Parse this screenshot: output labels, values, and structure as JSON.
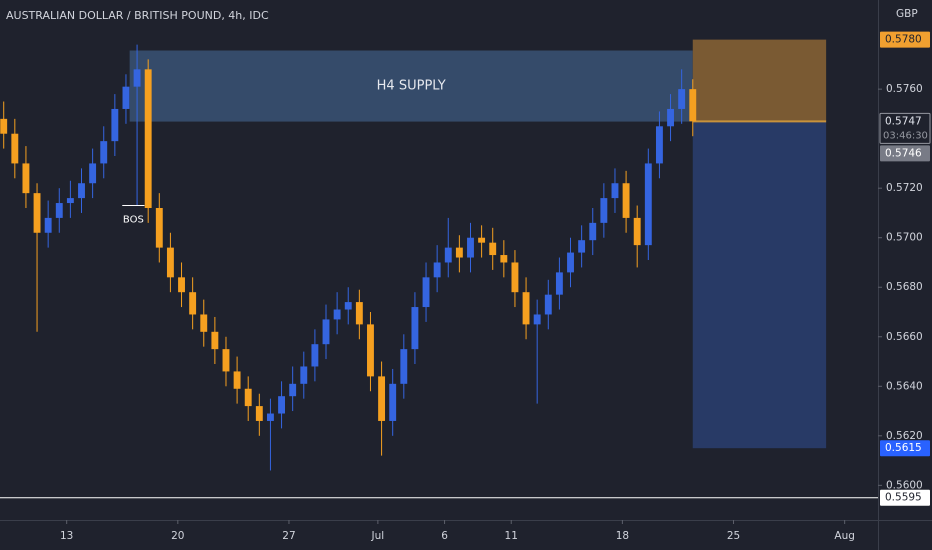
{
  "chart_data": {
    "type": "candlestick",
    "title": "AUSTRALIAN DOLLAR / BRITISH POUND, 4h, IDC",
    "y_axis_label": "GBP",
    "up_color": "#3565e0",
    "down_color": "#f5a020",
    "x": [
      -17,
      -14,
      -11,
      -8,
      -5,
      -2,
      1,
      4,
      7,
      10,
      13,
      16,
      19,
      22,
      25,
      28,
      31,
      34,
      37,
      40,
      43,
      46,
      49,
      52,
      55,
      58,
      61,
      64,
      67,
      70,
      73,
      76,
      79,
      82,
      85,
      88,
      91,
      94,
      97,
      100,
      103,
      106,
      109,
      112,
      115,
      118,
      121,
      124,
      127,
      130,
      133,
      136,
      139,
      142,
      145,
      148,
      151,
      154,
      157,
      160,
      163,
      166,
      169
    ],
    "open": [
      0.5748,
      0.5742,
      0.573,
      0.5718,
      0.5702,
      0.5708,
      0.5714,
      0.5716,
      0.5722,
      0.573,
      0.5739,
      0.5752,
      0.5761,
      0.5768,
      0.5712,
      0.5696,
      0.5684,
      0.5678,
      0.5669,
      0.5662,
      0.5655,
      0.5646,
      0.5639,
      0.5632,
      0.5626,
      0.5629,
      0.5636,
      0.5641,
      0.5648,
      0.5657,
      0.5667,
      0.5671,
      0.5674,
      0.5665,
      0.5644,
      0.5626,
      0.5641,
      0.5655,
      0.5672,
      0.5684,
      0.569,
      0.5696,
      0.5692,
      0.57,
      0.5698,
      0.5693,
      0.569,
      0.5678,
      0.5665,
      0.5669,
      0.5677,
      0.5686,
      0.5694,
      0.5699,
      0.5706,
      0.5716,
      0.5722,
      0.5708,
      0.5697,
      0.573,
      0.5745,
      0.5752,
      0.576
    ],
    "high": [
      0.5755,
      0.5748,
      0.5737,
      0.5722,
      0.5715,
      0.572,
      0.5723,
      0.5728,
      0.5736,
      0.5745,
      0.5758,
      0.5766,
      0.5778,
      0.5772,
      0.5718,
      0.5702,
      0.569,
      0.5684,
      0.5675,
      0.5668,
      0.566,
      0.5652,
      0.5644,
      0.5637,
      0.5635,
      0.5642,
      0.5648,
      0.5654,
      0.5663,
      0.5673,
      0.5678,
      0.568,
      0.5679,
      0.567,
      0.565,
      0.5647,
      0.5661,
      0.5678,
      0.569,
      0.5697,
      0.5708,
      0.5701,
      0.5706,
      0.5705,
      0.5704,
      0.5699,
      0.5695,
      0.5684,
      0.5675,
      0.5683,
      0.5692,
      0.57,
      0.5705,
      0.5712,
      0.5722,
      0.5728,
      0.5727,
      0.5713,
      0.5736,
      0.5751,
      0.5758,
      0.5768,
      0.5764
    ],
    "low": [
      0.5736,
      0.5724,
      0.5712,
      0.5662,
      0.5696,
      0.5702,
      0.5708,
      0.571,
      0.5716,
      0.5724,
      0.5733,
      0.5746,
      0.5713,
      0.5706,
      0.569,
      0.5678,
      0.5672,
      0.5663,
      0.5656,
      0.5649,
      0.564,
      0.5633,
      0.5626,
      0.562,
      0.5606,
      0.5623,
      0.563,
      0.5635,
      0.5642,
      0.5651,
      0.5661,
      0.5665,
      0.5659,
      0.5638,
      0.5612,
      0.562,
      0.5635,
      0.5649,
      0.5666,
      0.5678,
      0.5684,
      0.5686,
      0.5686,
      0.5692,
      0.5687,
      0.5684,
      0.5672,
      0.5659,
      0.5633,
      0.5663,
      0.5671,
      0.568,
      0.5688,
      0.5693,
      0.57,
      0.571,
      0.5702,
      0.5688,
      0.5691,
      0.5724,
      0.5739,
      0.5746,
      0.5741
    ],
    "close": [
      0.5742,
      0.573,
      0.5718,
      0.5702,
      0.5708,
      0.5714,
      0.5716,
      0.5722,
      0.573,
      0.5739,
      0.5752,
      0.5761,
      0.5768,
      0.5712,
      0.5696,
      0.5684,
      0.5678,
      0.5669,
      0.5662,
      0.5655,
      0.5646,
      0.5639,
      0.5632,
      0.5626,
      0.5629,
      0.5636,
      0.5641,
      0.5648,
      0.5657,
      0.5667,
      0.5671,
      0.5674,
      0.5665,
      0.5644,
      0.5626,
      0.5641,
      0.5655,
      0.5672,
      0.5684,
      0.569,
      0.5696,
      0.5692,
      0.57,
      0.5698,
      0.5693,
      0.569,
      0.5678,
      0.5665,
      0.5669,
      0.5677,
      0.5686,
      0.5694,
      0.5699,
      0.5706,
      0.5716,
      0.5722,
      0.5708,
      0.5697,
      0.573,
      0.5745,
      0.5752,
      0.576,
      0.5747
    ],
    "xlim": [
      -18,
      219
    ],
    "ylim": [
      0.5586,
      0.5796
    ],
    "xticks": [
      {
        "value": 0,
        "label": "13"
      },
      {
        "value": 30,
        "label": "20"
      },
      {
        "value": 60,
        "label": "27"
      },
      {
        "value": 84,
        "label": "Jul"
      },
      {
        "value": 102,
        "label": "6"
      },
      {
        "value": 120,
        "label": "11"
      },
      {
        "value": 150,
        "label": "18"
      },
      {
        "value": 180,
        "label": "25"
      },
      {
        "value": 210,
        "label": "Aug"
      }
    ],
    "yticks": [
      {
        "value": 0.576,
        "label": "0.5760"
      },
      {
        "value": 0.572,
        "label": "0.5720"
      },
      {
        "value": 0.57,
        "label": "0.5700"
      },
      {
        "value": 0.568,
        "label": "0.5680"
      },
      {
        "value": 0.566,
        "label": "0.5660"
      },
      {
        "value": 0.564,
        "label": "0.5640"
      },
      {
        "value": 0.562,
        "label": "0.5620"
      },
      {
        "value": 0.56,
        "label": "0.5600"
      }
    ],
    "supply_zone": {
      "label": "H4 SUPPLY",
      "x": [
        17,
        169
      ],
      "y": [
        0.57469,
        0.57756
      ],
      "color": "#3a5275"
    },
    "bos": {
      "label": "BOS",
      "value": 0.5713,
      "x": [
        15,
        21
      ]
    },
    "position": {
      "x": [
        169,
        205
      ],
      "entry": 0.5747,
      "stop": 0.578,
      "target": 0.5615,
      "stop_color": "#7a5a33",
      "target_color": "#283a66"
    },
    "price_labels": [
      {
        "value": 0.578,
        "label": "0.5780",
        "color": "#f0a030",
        "text_color": "#1f222d"
      },
      {
        "value": 0.5747,
        "label": "0.5747",
        "countdown": "03:46:30",
        "color": "#1f222d",
        "text_color": "#e0e3eb"
      },
      {
        "value": 0.5746,
        "label": "0.5746",
        "color": "#787b86",
        "text_color": "#ffffff"
      },
      {
        "value": 0.5615,
        "label": "0.5615",
        "color": "#2962ff",
        "text_color": "#ffffff"
      },
      {
        "value": 0.5595,
        "label": "0.5595",
        "color": "#ffffff",
        "text_color": "#1f222d",
        "line": true
      }
    ]
  }
}
